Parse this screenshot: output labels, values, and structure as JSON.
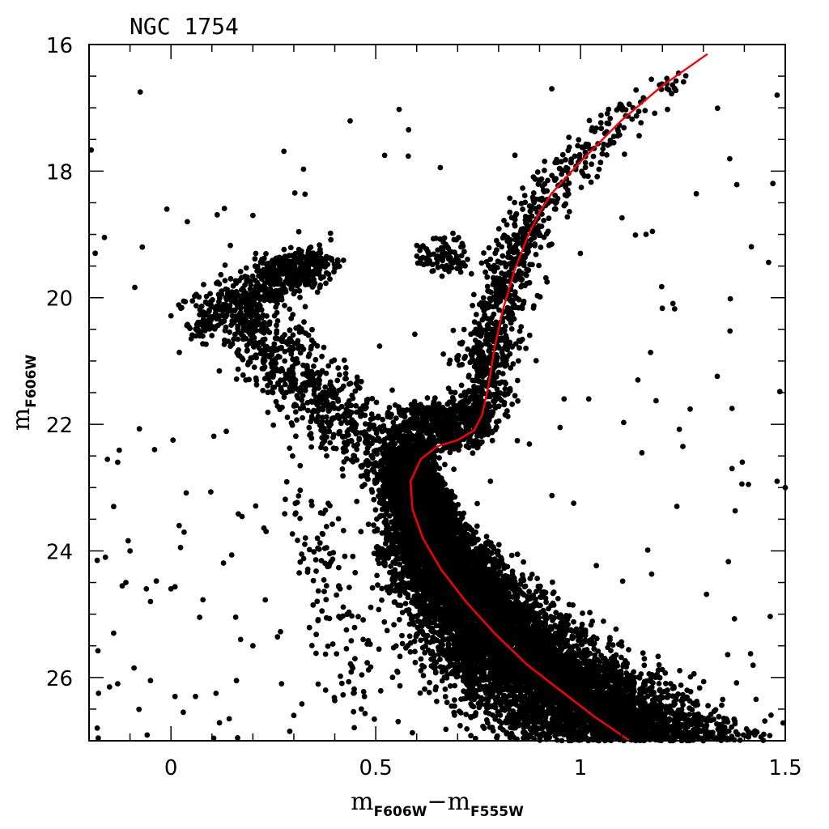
{
  "chart_data": {
    "type": "scatter",
    "title": "NGC 1754",
    "xlabel": {
      "main": "m",
      "sub1": "F606W",
      "minus": "−",
      "main2": "m",
      "sub2": "F555W"
    },
    "ylabel": {
      "main": "m",
      "sub": "F606W"
    },
    "xlim": [
      -0.2,
      1.5
    ],
    "ylim": [
      27,
      16
    ],
    "y_inverted": true,
    "x_ticks": [
      0,
      0.5,
      1,
      1.5
    ],
    "x_tick_labels": [
      "0",
      "0.5",
      "1",
      "1.5"
    ],
    "y_ticks": [
      16,
      18,
      20,
      22,
      24,
      26
    ],
    "y_tick_labels": [
      "16",
      "18",
      "20",
      "22",
      "24",
      "26"
    ],
    "grid": false,
    "point_color": "#000000",
    "series": [
      {
        "kind": "isochrone",
        "color": "#ff0000",
        "points": [
          [
            1.31,
            16.15
          ],
          [
            1.2,
            16.65
          ],
          [
            1.1,
            17.2
          ],
          [
            1.0,
            17.85
          ],
          [
            0.93,
            18.35
          ],
          [
            0.9,
            18.65
          ],
          [
            0.87,
            19.05
          ],
          [
            0.84,
            19.55
          ],
          [
            0.81,
            20.2
          ],
          [
            0.79,
            20.8
          ],
          [
            0.775,
            21.4
          ],
          [
            0.76,
            21.85
          ],
          [
            0.74,
            22.1
          ],
          [
            0.7,
            22.25
          ],
          [
            0.65,
            22.35
          ],
          [
            0.61,
            22.55
          ],
          [
            0.585,
            22.9
          ],
          [
            0.59,
            23.35
          ],
          [
            0.615,
            23.8
          ],
          [
            0.66,
            24.3
          ],
          [
            0.72,
            24.8
          ],
          [
            0.79,
            25.3
          ],
          [
            0.87,
            25.8
          ],
          [
            0.95,
            26.2
          ],
          [
            1.03,
            26.6
          ],
          [
            1.12,
            27.0
          ]
        ]
      },
      {
        "kind": "stars",
        "color": "#000000",
        "components": [
          {
            "name": "main-sequence",
            "x": [
              0.58,
              0.95
            ],
            "y": [
              22.5,
              26.95
            ],
            "density": "very-high"
          },
          {
            "name": "subgiant-turnoff",
            "x": [
              0.52,
              0.8
            ],
            "y": [
              21.8,
              23.2
            ],
            "density": "high"
          },
          {
            "name": "red-giant-branch",
            "x": [
              0.75,
              1.3
            ],
            "y": [
              16.2,
              21.8
            ],
            "density": "medium"
          },
          {
            "name": "horizontal-branch",
            "x": [
              0.04,
              0.7
            ],
            "y": [
              18.6,
              22.0
            ],
            "density": "medium"
          },
          {
            "name": "field",
            "x": [
              -0.2,
              1.5
            ],
            "y": [
              16.7,
              27.0
            ],
            "density": "low"
          }
        ],
        "outliers": [
          [
            -0.075,
            16.75
          ],
          [
            0.93,
            16.7
          ],
          [
            1.48,
            16.8
          ],
          [
            1.16,
            19.0
          ],
          [
            1.14,
            21.3
          ],
          [
            1.37,
            21.75
          ],
          [
            1.15,
            22.45
          ],
          [
            1.25,
            22.35
          ],
          [
            1.37,
            22.7
          ],
          [
            1.41,
            22.95
          ],
          [
            1.5,
            23.0
          ],
          [
            1.48,
            22.9
          ],
          [
            0.005,
            22.25
          ],
          [
            -0.04,
            22.4
          ],
          [
            -0.13,
            22.6
          ],
          [
            -0.14,
            23.3
          ],
          [
            -0.16,
            24.1
          ],
          [
            -0.18,
            24.15
          ],
          [
            -0.1,
            24.0
          ],
          [
            -0.11,
            24.5
          ],
          [
            -0.06,
            24.6
          ],
          [
            -0.05,
            24.8
          ],
          [
            0.0,
            24.6
          ],
          [
            0.02,
            23.6
          ],
          [
            -0.14,
            25.3
          ],
          [
            -0.09,
            25.85
          ],
          [
            -0.05,
            26.05
          ],
          [
            -0.13,
            26.1
          ],
          [
            -0.15,
            26.15
          ],
          [
            -0.18,
            26.8
          ],
          [
            0.01,
            26.3
          ],
          [
            0.03,
            26.55
          ],
          [
            0.07,
            25.05
          ],
          [
            0.2,
            25.5
          ],
          [
            0.17,
            25.4
          ],
          [
            0.16,
            26.05
          ],
          [
            0.11,
            26.25
          ],
          [
            0.06,
            26.3
          ],
          [
            0.27,
            26.1
          ],
          [
            0.3,
            26.6
          ],
          [
            0.29,
            26.85
          ],
          [
            -0.07,
            19.2
          ],
          [
            -0.01,
            18.6
          ],
          [
            0.04,
            18.8
          ],
          [
            0.2,
            18.7
          ],
          [
            0.68,
            21.65
          ],
          [
            0.96,
            21.6
          ],
          [
            0.95,
            22.05
          ],
          [
            1.02,
            21.6
          ],
          [
            0.84,
            17.75
          ],
          [
            0.83,
            20.4
          ],
          [
            0.78,
            22.9
          ]
        ]
      }
    ]
  }
}
